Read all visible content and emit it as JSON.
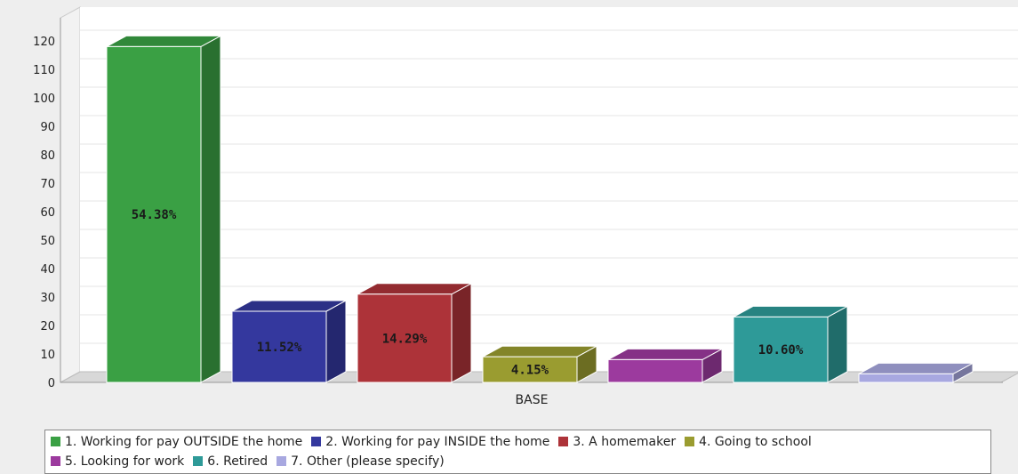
{
  "chart_data": {
    "type": "bar",
    "xlabel": "BASE",
    "ylabel": "",
    "ylim": [
      0,
      120
    ],
    "yticks": [
      0,
      10,
      20,
      30,
      40,
      50,
      60,
      70,
      80,
      90,
      100,
      110,
      120
    ],
    "grid": true,
    "legend_position": "bottom",
    "series": [
      {
        "name": "1. Working for pay OUTSIDE the home",
        "value": 118,
        "label": "54.38%",
        "color": "#3aa044"
      },
      {
        "name": "2. Working for pay INSIDE the home",
        "value": 25,
        "label": "11.52%",
        "color": "#34389e"
      },
      {
        "name": "3. A homemaker",
        "value": 31,
        "label": "14.29%",
        "color": "#ad3339"
      },
      {
        "name": "4. Going to school",
        "value": 9,
        "label": "4.15%",
        "color": "#9a9c30"
      },
      {
        "name": "5. Looking for work",
        "value": 8,
        "label": "",
        "color": "#9c3a9e"
      },
      {
        "name": "6. Retired",
        "value": 23,
        "label": "10.60%",
        "color": "#2e9a98"
      },
      {
        "name": "7. Other (please specify)",
        "value": 3,
        "label": "",
        "color": "#a8a8e0"
      }
    ]
  }
}
